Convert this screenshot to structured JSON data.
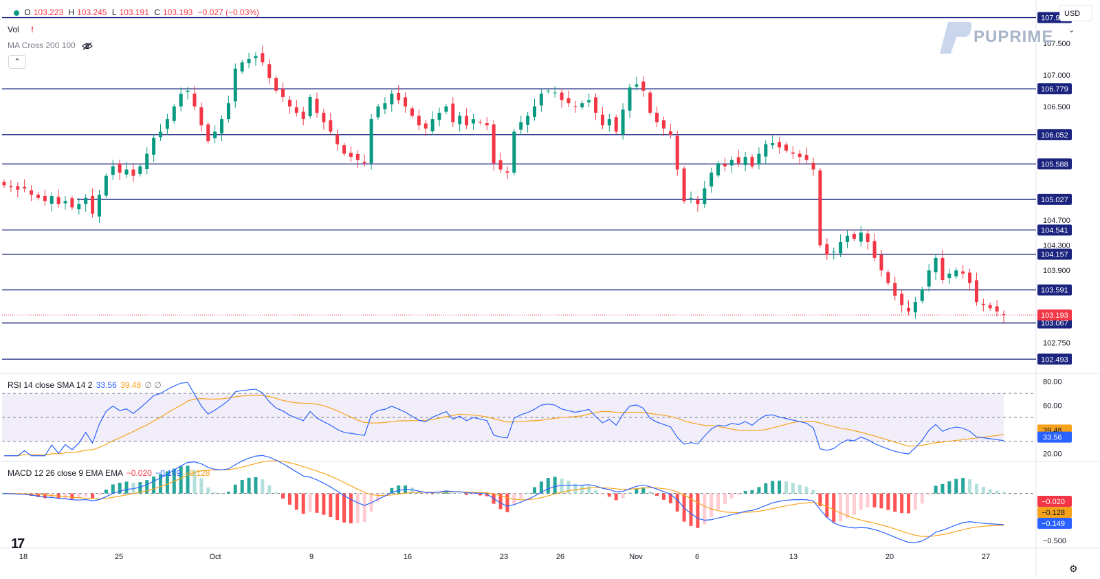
{
  "header": {
    "ohlc": {
      "open_label": "O",
      "open": "103.223",
      "high_label": "H",
      "high": "103.245",
      "low_label": "L",
      "low": "103.191",
      "close_label": "C",
      "close": "103.193",
      "change": "−0.027 (−0.03%)"
    },
    "vol_label": "Vol",
    "ma_label": "MA Cross 200 100",
    "currency": "USD",
    "collapse_icon": "chevron-up-icon",
    "hidden_icon": "eye-off-icon",
    "alert_icon": "exclamation-icon"
  },
  "brand": {
    "name": "PUPRIME"
  },
  "rsi_legend": {
    "label": "RSI 14 close SMA 14 2",
    "rsi": "33.56",
    "sma": "39.48",
    "extra": "∅ ∅"
  },
  "macd_legend": {
    "label": "MACD 12 26 close 9 EMA EMA",
    "hist": "−0.020",
    "macd": "−0.149",
    "signal": "−0.128"
  },
  "colors": {
    "up": "#089981",
    "down": "#f23645",
    "level": "#1a237e",
    "rsi": "#2962ff",
    "rsi_sma": "#f7a21b",
    "macd": "#2962ff",
    "signal": "#f7a21b"
  },
  "chart_data": [
    {
      "type": "candlestick",
      "x_tick_labels": [
        "18",
        "25",
        "Oct",
        "9",
        "16",
        "23",
        "26",
        "Nov",
        "6",
        "13",
        "20",
        "27"
      ],
      "y_tick_labels": [
        "107.500",
        "107.000",
        "106.500",
        "104.700",
        "104.300",
        "103.900",
        "102.750"
      ],
      "y_range": [
        102.3,
        108.1
      ],
      "horizontal_levels": [
        "107.909",
        "106.779",
        "106.052",
        "105.588",
        "105.027",
        "104.541",
        "104.157",
        "103.591",
        "103.067",
        "102.493"
      ],
      "last_price": "103.193",
      "series_close": [
        105.25,
        105.22,
        105.18,
        105.2,
        105.1,
        105.05,
        105.0,
        105.08,
        104.95,
        105.0,
        104.9,
        104.95,
        105.05,
        104.8,
        105.1,
        105.4,
        105.55,
        105.45,
        105.5,
        105.4,
        105.55,
        105.75,
        106.0,
        106.1,
        106.3,
        106.5,
        106.7,
        106.75,
        106.5,
        106.2,
        105.95,
        106.1,
        106.3,
        106.55,
        107.1,
        107.2,
        107.25,
        107.3,
        107.2,
        106.95,
        106.75,
        106.65,
        106.5,
        106.4,
        106.3,
        106.65,
        106.4,
        106.25,
        106.1,
        105.9,
        105.75,
        105.7,
        105.65,
        105.6,
        106.3,
        106.5,
        106.55,
        106.7,
        106.6,
        106.5,
        106.35,
        106.2,
        106.15,
        106.3,
        106.4,
        106.5,
        106.25,
        106.35,
        106.2,
        106.3,
        106.25,
        106.2,
        105.6,
        105.5,
        105.45,
        106.1,
        106.25,
        106.35,
        106.5,
        106.7,
        106.75,
        106.72,
        106.6,
        106.55,
        106.5,
        106.55,
        106.6,
        106.4,
        106.2,
        106.3,
        106.1,
        106.45,
        106.8,
        106.85,
        106.75,
        106.4,
        106.25,
        106.15,
        106.05,
        105.5,
        105.0,
        105.05,
        104.95,
        105.2,
        105.45,
        105.6,
        105.55,
        105.65,
        105.6,
        105.7,
        105.55,
        105.75,
        105.9,
        105.92,
        105.85,
        105.8,
        105.75,
        105.7,
        105.65,
        105.5,
        104.3,
        104.15,
        104.2,
        104.35,
        104.45,
        104.4,
        104.5,
        104.35,
        104.1,
        103.9,
        103.7,
        103.5,
        103.35,
        103.25,
        103.4,
        103.6,
        103.9,
        104.1,
        103.75,
        103.85,
        103.9,
        103.85,
        103.7,
        103.4,
        103.35,
        103.3,
        103.25,
        103.193
      ],
      "rsi": {
        "y_tick_labels": [
          "80.00",
          "60.00",
          "20.00"
        ],
        "y_range": [
          15,
          85
        ],
        "band": [
          30,
          70
        ],
        "last_rsi": "33.56",
        "last_sma": "39.48"
      },
      "macd": {
        "y_tick_labels": [
          "−0.500"
        ],
        "y_range": [
          -0.56,
          0.32
        ],
        "last_hist": "−0.020",
        "last_signal": "−0.128",
        "last_macd": "−0.149"
      }
    }
  ]
}
